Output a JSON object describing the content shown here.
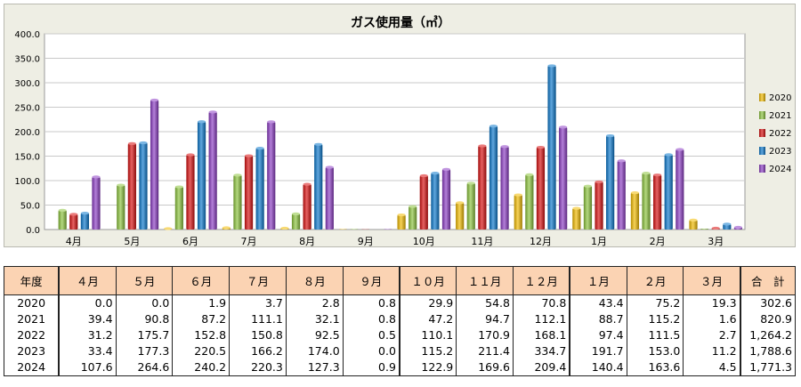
{
  "chart_data": {
    "type": "bar",
    "title": "ガス使用量（㎥）",
    "categories": [
      "4月",
      "5月",
      "6月",
      "7月",
      "8月",
      "9月",
      "10月",
      "11月",
      "12月",
      "1月",
      "2月",
      "3月"
    ],
    "ylim": [
      0,
      400
    ],
    "yticks": [
      "0.0",
      "50.0",
      "100.0",
      "150.0",
      "200.0",
      "250.0",
      "300.0",
      "350.0",
      "400.0"
    ],
    "grid": true,
    "legend_position": "right",
    "series": [
      {
        "name": "2020",
        "color": "#f2bc00",
        "values": [
          0.0,
          0.0,
          1.9,
          3.7,
          2.8,
          0.8,
          29.9,
          54.8,
          70.8,
          43.4,
          75.2,
          19.3
        ]
      },
      {
        "name": "2021",
        "color": "#8cc43c",
        "values": [
          39.4,
          90.8,
          87.2,
          111.1,
          32.1,
          0.8,
          47.2,
          94.7,
          112.1,
          88.7,
          115.2,
          1.6
        ]
      },
      {
        "name": "2022",
        "color": "#d80e0e",
        "values": [
          31.2,
          175.7,
          152.8,
          150.8,
          92.5,
          0.5,
          110.1,
          170.9,
          168.1,
          97.4,
          111.5,
          2.7
        ]
      },
      {
        "name": "2023",
        "color": "#0a78cc",
        "values": [
          33.4,
          177.3,
          220.5,
          166.2,
          174.0,
          0.0,
          115.2,
          211.4,
          334.7,
          191.7,
          153.0,
          11.2
        ]
      },
      {
        "name": "2024",
        "color": "#8c3cc4",
        "values": [
          107.6,
          264.6,
          240.2,
          220.3,
          127.3,
          0.9,
          122.9,
          169.6,
          209.4,
          140.4,
          163.6,
          4.5
        ]
      }
    ]
  },
  "table": {
    "headers": [
      "年度",
      "４月",
      "５月",
      "６月",
      "７月",
      "８月",
      "９月",
      "１０月",
      "１１月",
      "１２月",
      "１月",
      "２月",
      "３月",
      "合　計"
    ],
    "rows": [
      [
        "2020",
        "0.0",
        "0.0",
        "1.9",
        "3.7",
        "2.8",
        "0.8",
        "29.9",
        "54.8",
        "70.8",
        "43.4",
        "75.2",
        "19.3",
        "302.6"
      ],
      [
        "2021",
        "39.4",
        "90.8",
        "87.2",
        "111.1",
        "32.1",
        "0.8",
        "47.2",
        "94.7",
        "112.1",
        "88.7",
        "115.2",
        "1.6",
        "820.9"
      ],
      [
        "2022",
        "31.2",
        "175.7",
        "152.8",
        "150.8",
        "92.5",
        "0.5",
        "110.1",
        "170.9",
        "168.1",
        "97.4",
        "111.5",
        "2.7",
        "1,264.2"
      ],
      [
        "2023",
        "33.4",
        "177.3",
        "220.5",
        "166.2",
        "174.0",
        "0.0",
        "115.2",
        "211.4",
        "334.7",
        "191.7",
        "153.0",
        "11.2",
        "1,788.6"
      ],
      [
        "2024",
        "107.6",
        "264.6",
        "240.2",
        "220.3",
        "127.3",
        "0.9",
        "122.9",
        "169.6",
        "209.4",
        "140.4",
        "163.6",
        "4.5",
        "1,771.3"
      ]
    ]
  }
}
